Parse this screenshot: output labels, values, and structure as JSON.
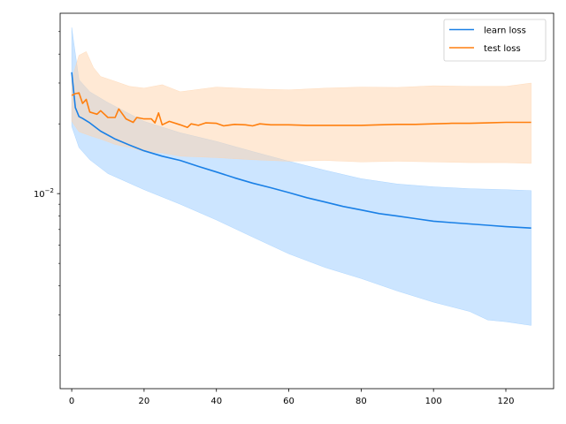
{
  "chart_data": {
    "type": "line",
    "title": "",
    "xlabel": "",
    "ylabel": "",
    "xlim": [
      -3.2,
      133.2
    ],
    "ylim": [
      0.00144,
      0.06
    ],
    "yscale": "log",
    "grid": false,
    "legend_position": "top-right",
    "x_ticks": [
      0,
      20,
      40,
      60,
      80,
      100,
      120
    ],
    "y_ticks": [
      {
        "value": 0.01,
        "label_base": "10",
        "label_exp": "−2"
      }
    ],
    "series": [
      {
        "name": "learn loss",
        "color": "#1a80e6",
        "band_color": "#99ccff",
        "points": [
          [
            0,
            0.0334
          ],
          [
            1,
            0.0235
          ],
          [
            2,
            0.0215
          ],
          [
            3,
            0.0211
          ],
          [
            5,
            0.0202
          ],
          [
            8,
            0.0186
          ],
          [
            12,
            0.0172
          ],
          [
            16,
            0.0162
          ],
          [
            20,
            0.0153
          ],
          [
            25,
            0.0145
          ],
          [
            30,
            0.0139
          ],
          [
            35,
            0.0131
          ],
          [
            40,
            0.0124
          ],
          [
            45,
            0.0117
          ],
          [
            50,
            0.0111
          ],
          [
            55,
            0.0106
          ],
          [
            60,
            0.0101
          ],
          [
            65,
            0.0096
          ],
          [
            70,
            0.0092
          ],
          [
            75,
            0.0088
          ],
          [
            80,
            0.0085
          ],
          [
            85,
            0.0082
          ],
          [
            90,
            0.008
          ],
          [
            95,
            0.0078
          ],
          [
            100,
            0.0076
          ],
          [
            105,
            0.0075
          ],
          [
            110,
            0.0074
          ],
          [
            115,
            0.0073
          ],
          [
            120,
            0.0072
          ],
          [
            127,
            0.0071
          ]
        ],
        "upper": [
          [
            0,
            0.052
          ],
          [
            2,
            0.031
          ],
          [
            5,
            0.0275
          ],
          [
            10,
            0.0247
          ],
          [
            20,
            0.0205
          ],
          [
            30,
            0.0183
          ],
          [
            40,
            0.0168
          ],
          [
            50,
            0.0152
          ],
          [
            60,
            0.0138
          ],
          [
            70,
            0.0126
          ],
          [
            80,
            0.0116
          ],
          [
            90,
            0.011
          ],
          [
            100,
            0.0107
          ],
          [
            110,
            0.0105
          ],
          [
            120,
            0.0104
          ],
          [
            127,
            0.0103
          ]
        ],
        "lower": [
          [
            0,
            0.0195
          ],
          [
            2,
            0.0158
          ],
          [
            5,
            0.014
          ],
          [
            10,
            0.0122
          ],
          [
            20,
            0.0104
          ],
          [
            30,
            0.009
          ],
          [
            40,
            0.0077
          ],
          [
            50,
            0.0065
          ],
          [
            60,
            0.0055
          ],
          [
            70,
            0.0048
          ],
          [
            80,
            0.0043
          ],
          [
            90,
            0.0038
          ],
          [
            100,
            0.0034
          ],
          [
            110,
            0.0031
          ],
          [
            115,
            0.00285
          ],
          [
            120,
            0.0028
          ],
          [
            127,
            0.0027
          ]
        ]
      },
      {
        "name": "test loss",
        "color": "#ff7f0e",
        "band_color": "#ffd3ab",
        "points": [
          [
            0,
            0.0265
          ],
          [
            1,
            0.027
          ],
          [
            2,
            0.0272
          ],
          [
            3,
            0.0245
          ],
          [
            4,
            0.0255
          ],
          [
            5,
            0.0225
          ],
          [
            7,
            0.022
          ],
          [
            8,
            0.0228
          ],
          [
            10,
            0.0213
          ],
          [
            12,
            0.0213
          ],
          [
            13,
            0.0232
          ],
          [
            15,
            0.021
          ],
          [
            17,
            0.0203
          ],
          [
            18,
            0.0213
          ],
          [
            20,
            0.021
          ],
          [
            22,
            0.021
          ],
          [
            23,
            0.0202
          ],
          [
            24,
            0.0223
          ],
          [
            25,
            0.0198
          ],
          [
            27,
            0.0205
          ],
          [
            30,
            0.0198
          ],
          [
            32,
            0.0193
          ],
          [
            33,
            0.02
          ],
          [
            35,
            0.0197
          ],
          [
            37,
            0.0202
          ],
          [
            40,
            0.0201
          ],
          [
            42,
            0.0196
          ],
          [
            45,
            0.0199
          ],
          [
            48,
            0.0198
          ],
          [
            50,
            0.0196
          ],
          [
            52,
            0.02
          ],
          [
            55,
            0.0198
          ],
          [
            60,
            0.0198
          ],
          [
            65,
            0.0197
          ],
          [
            70,
            0.0197
          ],
          [
            75,
            0.0197
          ],
          [
            80,
            0.0197
          ],
          [
            85,
            0.0198
          ],
          [
            90,
            0.0199
          ],
          [
            95,
            0.0199
          ],
          [
            100,
            0.02
          ],
          [
            105,
            0.0201
          ],
          [
            110,
            0.0201
          ],
          [
            115,
            0.0202
          ],
          [
            120,
            0.0203
          ],
          [
            127,
            0.0203
          ]
        ],
        "upper": [
          [
            0,
            0.031
          ],
          [
            2,
            0.0395
          ],
          [
            4,
            0.041
          ],
          [
            6,
            0.035
          ],
          [
            8,
            0.032
          ],
          [
            12,
            0.0305
          ],
          [
            16,
            0.029
          ],
          [
            20,
            0.0285
          ],
          [
            25,
            0.0295
          ],
          [
            30,
            0.0275
          ],
          [
            40,
            0.0288
          ],
          [
            50,
            0.0283
          ],
          [
            60,
            0.028
          ],
          [
            70,
            0.0285
          ],
          [
            80,
            0.0288
          ],
          [
            90,
            0.0287
          ],
          [
            100,
            0.0292
          ],
          [
            110,
            0.029
          ],
          [
            120,
            0.029
          ],
          [
            127,
            0.03
          ]
        ],
        "lower": [
          [
            0,
            0.0205
          ],
          [
            2,
            0.0185
          ],
          [
            5,
            0.0178
          ],
          [
            8,
            0.0172
          ],
          [
            12,
            0.0163
          ],
          [
            16,
            0.0158
          ],
          [
            20,
            0.0152
          ],
          [
            25,
            0.015
          ],
          [
            30,
            0.0145
          ],
          [
            40,
            0.0143
          ],
          [
            50,
            0.014
          ],
          [
            60,
            0.0138
          ],
          [
            70,
            0.0139
          ],
          [
            80,
            0.0137
          ],
          [
            90,
            0.0138
          ],
          [
            100,
            0.0137
          ],
          [
            110,
            0.0136
          ],
          [
            120,
            0.0136
          ],
          [
            127,
            0.0135
          ]
        ]
      }
    ]
  }
}
